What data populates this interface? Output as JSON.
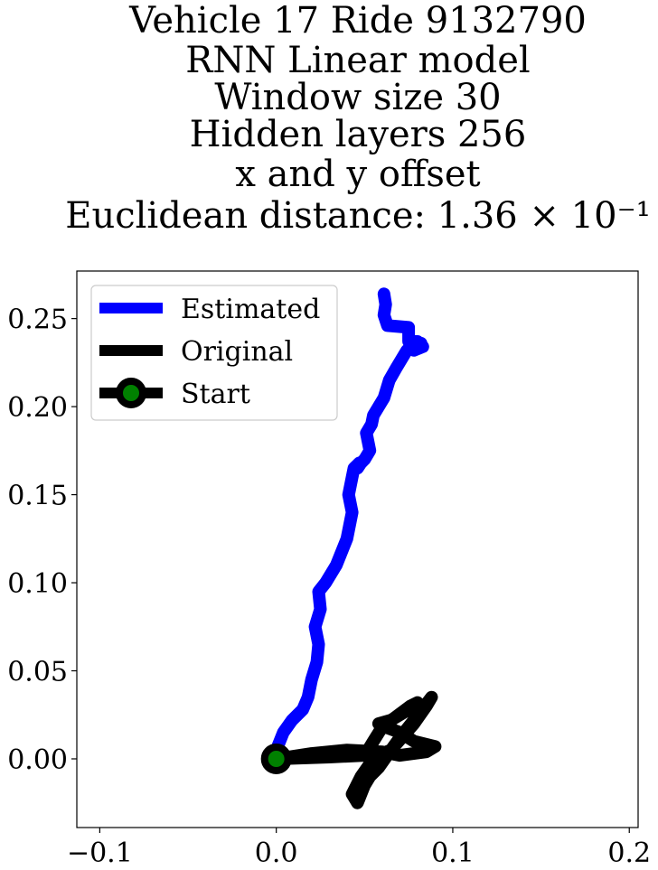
{
  "chart_data": {
    "type": "line",
    "title_lines": [
      "Vehicle 17 Ride 9132790",
      "RNN Linear model",
      "Window size 30",
      "Hidden layers 256",
      "x and y offset",
      "Euclidean distance: 1.36 × 10⁻¹"
    ],
    "xlabel": "",
    "ylabel": "",
    "xlim": [
      -0.113,
      0.205
    ],
    "ylim": [
      -0.039,
      0.277
    ],
    "x_ticks": [
      -0.1,
      0.0,
      0.1,
      0.2
    ],
    "x_tick_labels": [
      "−0.1",
      "0.0",
      "0.1",
      "0.2"
    ],
    "y_ticks": [
      0.0,
      0.05,
      0.1,
      0.15,
      0.2,
      0.25
    ],
    "y_tick_labels": [
      "0.00",
      "0.05",
      "0.10",
      "0.15",
      "0.20",
      "0.25"
    ],
    "grid": false,
    "legend_position": "upper-left",
    "series": [
      {
        "name": "Estimated",
        "color": "#0000ff",
        "x": [
          0.0,
          0.004,
          0.009,
          0.015,
          0.018,
          0.02,
          0.023,
          0.024,
          0.022,
          0.025,
          0.024,
          0.028,
          0.034,
          0.04,
          0.043,
          0.041,
          0.043,
          0.044,
          0.047,
          0.046,
          0.048,
          0.05,
          0.053,
          0.051,
          0.054,
          0.055,
          0.061,
          0.064,
          0.068,
          0.074,
          0.082,
          0.078,
          0.083,
          0.08,
          0.075,
          0.075,
          0.063,
          0.061,
          0.062,
          0.061
        ],
        "y": [
          0.005,
          0.015,
          0.022,
          0.028,
          0.035,
          0.045,
          0.055,
          0.065,
          0.075,
          0.085,
          0.095,
          0.1,
          0.11,
          0.125,
          0.14,
          0.15,
          0.16,
          0.165,
          0.168,
          0.165,
          0.168,
          0.17,
          0.175,
          0.185,
          0.19,
          0.195,
          0.205,
          0.215,
          0.222,
          0.232,
          0.236,
          0.232,
          0.234,
          0.237,
          0.237,
          0.245,
          0.246,
          0.252,
          0.258,
          0.264
        ]
      },
      {
        "name": "Original",
        "color": "#000000",
        "x": [
          0.0,
          0.02,
          0.04,
          0.06,
          0.07,
          0.085,
          0.09,
          0.078,
          0.07,
          0.062,
          0.058,
          0.065,
          0.075,
          0.08,
          0.076,
          0.06,
          0.055,
          0.052,
          0.055,
          0.048,
          0.043,
          0.046,
          0.05,
          0.053,
          0.058,
          0.065,
          0.078,
          0.085,
          0.088,
          0.078,
          0.07,
          0.065,
          0.06,
          0.05,
          0.03,
          0.0
        ],
        "y": [
          0.0,
          0.003,
          0.005,
          0.004,
          0.002,
          0.004,
          0.007,
          0.01,
          0.015,
          0.018,
          0.02,
          0.022,
          0.028,
          0.032,
          0.03,
          0.018,
          0.01,
          0.005,
          0.0,
          -0.01,
          -0.02,
          -0.025,
          -0.015,
          -0.01,
          -0.005,
          0.005,
          0.02,
          0.03,
          0.035,
          0.022,
          0.012,
          0.005,
          0.003,
          0.002,
          0.001,
          0.0
        ]
      }
    ],
    "start_point": {
      "name": "Start",
      "x": 0.0,
      "y": 0.0,
      "marker_color": "#008000",
      "edge_color": "#000000"
    },
    "legend_entries": [
      "Estimated",
      "Original",
      "Start"
    ]
  }
}
